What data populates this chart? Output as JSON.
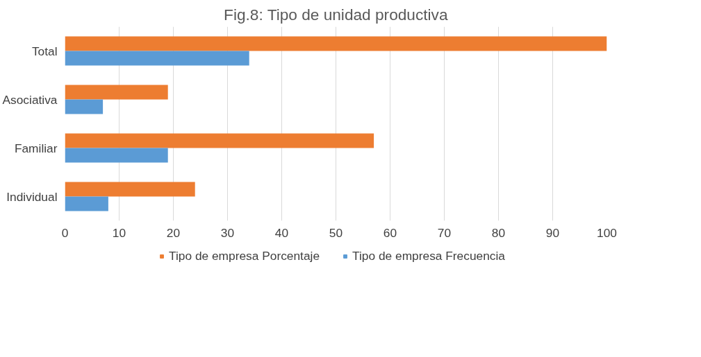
{
  "chart_data": {
    "type": "bar",
    "orientation": "horizontal",
    "title": "Fig.8: Tipo de unidad productiva",
    "categories": [
      "Total",
      "Asociativa",
      "Familiar",
      "Individual"
    ],
    "series": [
      {
        "name": "Tipo de empresa Porcentaje",
        "color": "#ed7d31",
        "values": [
          100,
          19,
          57,
          24
        ]
      },
      {
        "name": "Tipo de empresa Frecuencia",
        "color": "#5b9bd5",
        "values": [
          34,
          7,
          19,
          8
        ]
      }
    ],
    "xlim": [
      0,
      100
    ],
    "xticks": [
      0,
      10,
      20,
      30,
      40,
      50,
      60,
      70,
      80,
      90,
      100
    ],
    "grid": "x",
    "legend": "bottom"
  }
}
